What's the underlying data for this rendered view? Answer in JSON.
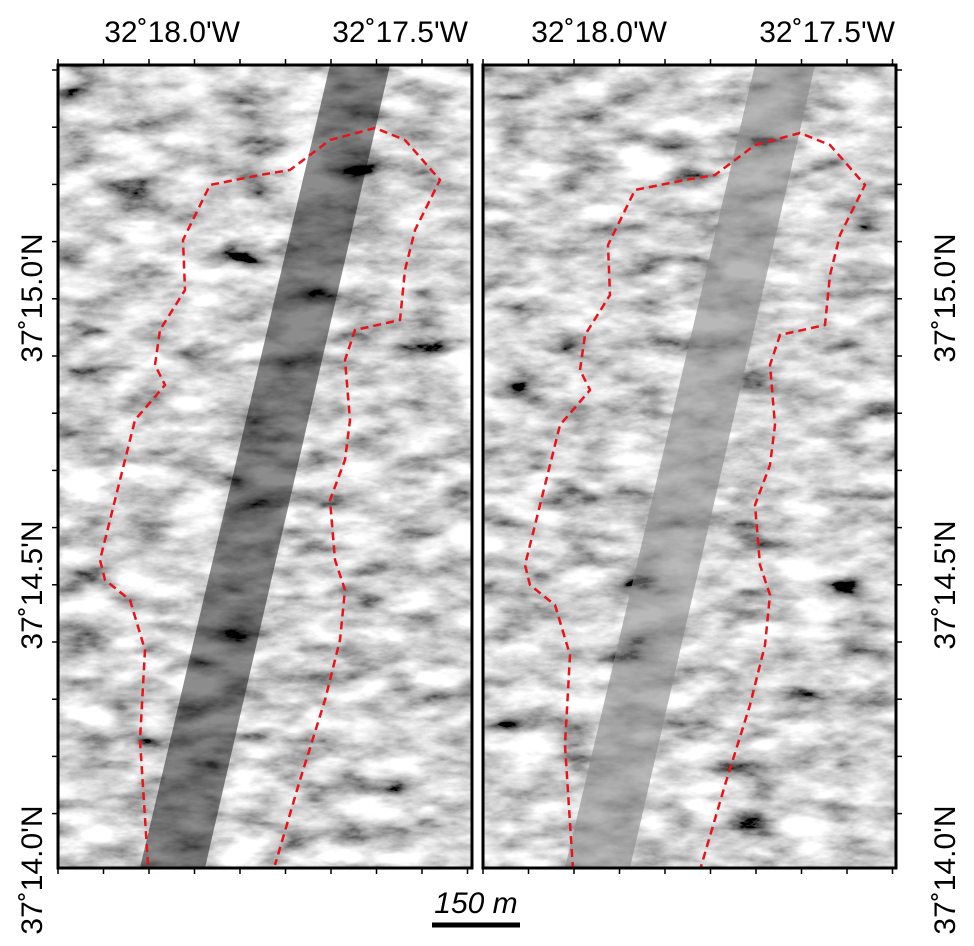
{
  "panels": [
    {
      "top_labels": [
        "32˚18.0'W",
        "32˚17.5'W"
      ],
      "side_labels": [
        "37˚15.0'N",
        "37˚14.5'N",
        "37˚14.0'N"
      ]
    },
    {
      "top_labels": [
        "32˚18.0'W",
        "32˚17.5'W"
      ],
      "side_labels": [
        "37˚15.0'N",
        "37˚14.5'N",
        "37˚14.0'N"
      ]
    }
  ],
  "scale_bar": {
    "label": "150 m"
  }
}
